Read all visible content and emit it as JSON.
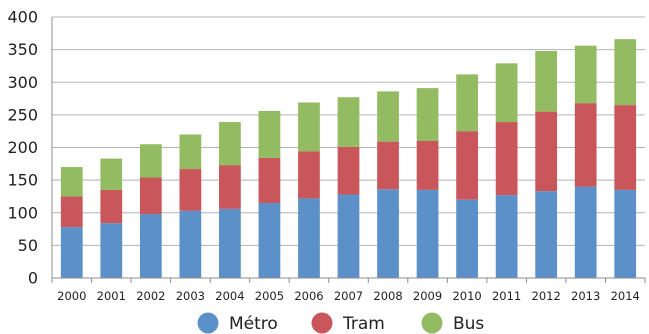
{
  "chart_data": {
    "type": "bar",
    "stacked": true,
    "categories": [
      "2000",
      "2001",
      "2002",
      "2003",
      "2004",
      "2005",
      "2006",
      "2007",
      "2008",
      "2009",
      "2010",
      "2011",
      "2012",
      "2013",
      "2014"
    ],
    "series": [
      {
        "name": "Métro",
        "color": "#5b90c8",
        "values": [
          78,
          84,
          98,
          103,
          106,
          115,
          122,
          128,
          136,
          135,
          120,
          127,
          133,
          140,
          135
        ]
      },
      {
        "name": "Tram",
        "color": "#c8565a",
        "values": [
          47,
          51,
          56,
          64,
          67,
          69,
          72,
          73,
          73,
          75,
          105,
          112,
          122,
          128,
          130
        ]
      },
      {
        "name": "Bus",
        "color": "#93bb62",
        "values": [
          45,
          48,
          51,
          53,
          66,
          72,
          75,
          76,
          77,
          81,
          87,
          90,
          93,
          88,
          101
        ]
      }
    ],
    "ylim": [
      0,
      400
    ],
    "yticks": [
      0,
      50,
      100,
      150,
      200,
      250,
      300,
      350,
      400
    ],
    "grid": true,
    "legend": "bottom",
    "title": "",
    "xlabel": "",
    "ylabel": ""
  }
}
